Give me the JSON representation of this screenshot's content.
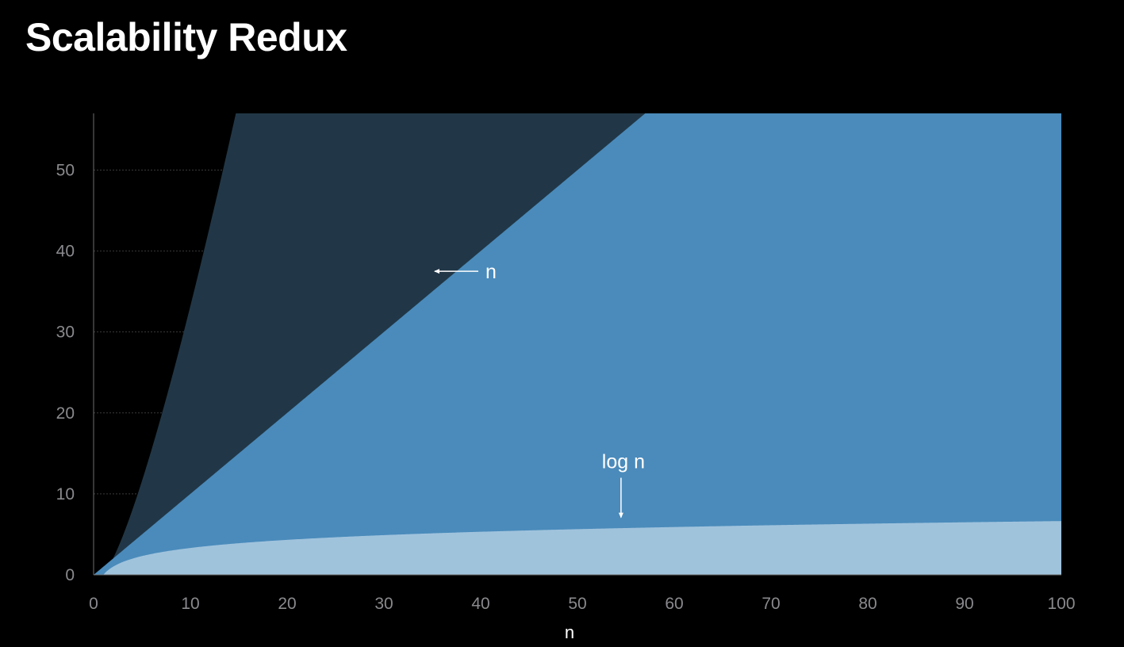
{
  "title": "Scalability Redux",
  "colors": {
    "background": "#000000",
    "nlogn_fill": "#213747",
    "n_fill": "#4a8bbb",
    "logn_fill": "#a0c3dc",
    "grid": "#3a3a3a",
    "axis": "#6e6e6e",
    "tick_text": "#8a8a8e",
    "annotation": "#ffffff"
  },
  "chart_data": {
    "type": "area",
    "title": "Scalability Redux",
    "xlabel": "n",
    "ylabel": "",
    "xlim": [
      0,
      100
    ],
    "ylim": [
      0,
      57
    ],
    "x_ticks": [
      0,
      10,
      20,
      30,
      40,
      50,
      60,
      70,
      80,
      90,
      100
    ],
    "y_ticks": [
      0,
      10,
      20,
      30,
      40,
      50
    ],
    "grid": "horizontal",
    "legend": "none",
    "series": [
      {
        "key": "nlogn",
        "function": "n log2 n",
        "x": [
          1,
          2,
          4,
          6,
          8,
          10,
          12,
          13.5
        ],
        "values": [
          0,
          2,
          8,
          15.5,
          24,
          33.2,
          43,
          50.7
        ]
      },
      {
        "key": "n",
        "name": "n",
        "function": "n",
        "x": [
          0,
          25,
          50,
          55.4
        ],
        "values": [
          0,
          25,
          50,
          55.4
        ]
      },
      {
        "key": "logn",
        "name": "log n",
        "function": "log2 n",
        "x": [
          1,
          2,
          4,
          10,
          20,
          30,
          40,
          50,
          60,
          70,
          80,
          90,
          100
        ],
        "values": [
          0,
          1,
          2,
          3.3,
          4.3,
          4.9,
          5.3,
          5.6,
          5.9,
          6.1,
          6.3,
          6.5,
          6.6
        ]
      }
    ],
    "annotations": [
      {
        "text": "n",
        "points_to": [
          35,
          37.5
        ]
      },
      {
        "text": "log n",
        "points_to": [
          54.5,
          6.8
        ]
      }
    ]
  }
}
